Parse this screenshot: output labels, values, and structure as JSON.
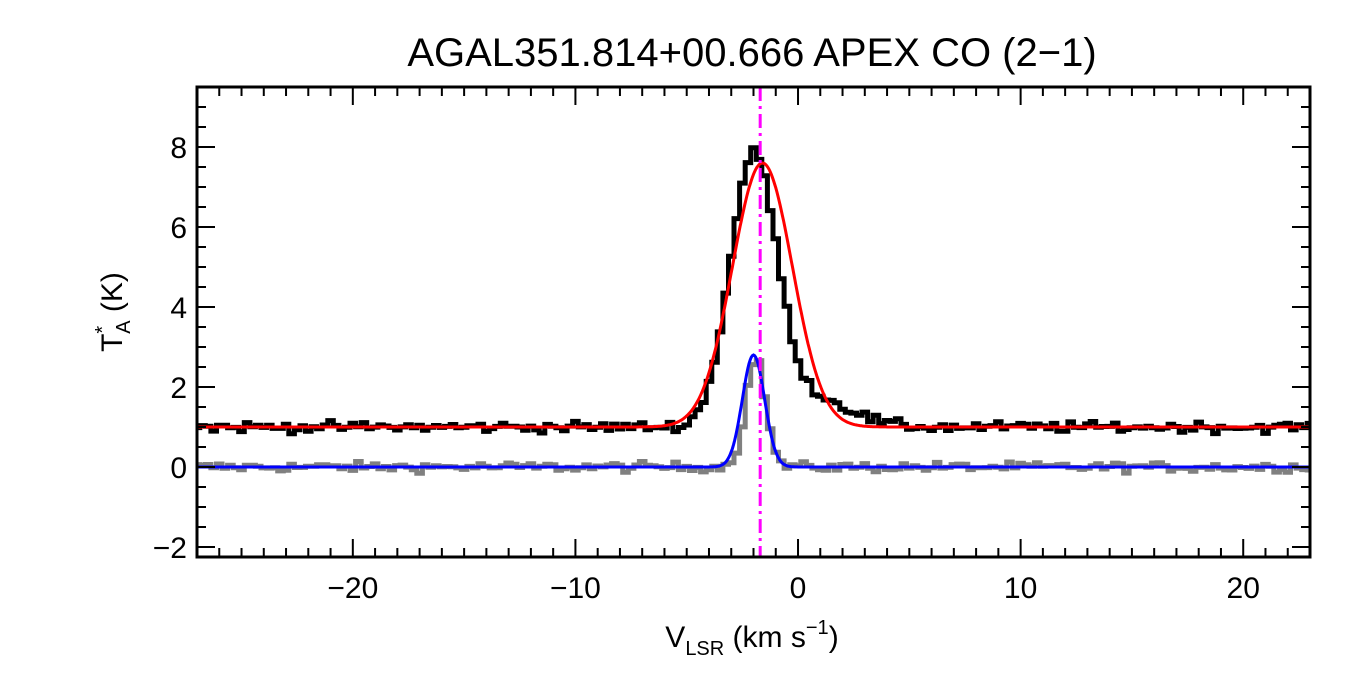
{
  "chart_data": {
    "type": "line",
    "title": "AGAL351.814+00.666  APEX CO (2−1)",
    "xlabel": {
      "main": "V",
      "sub": "LSR",
      "unit_open": " (km s",
      "unit_sup": "−1",
      "unit_close": ")"
    },
    "ylabel": {
      "main": "T",
      "sup": "*",
      "sub": "A",
      "unit": " (K)"
    },
    "xlim": [
      -27,
      23
    ],
    "ylim": [
      -2.25,
      9.5
    ],
    "xticks": [
      -20,
      -10,
      0,
      10,
      20
    ],
    "xtick_labels": [
      "−20",
      "−10",
      "0",
      "10",
      "20"
    ],
    "yticks": [
      -2,
      0,
      2,
      4,
      6,
      8
    ],
    "ytick_labels": [
      "−2",
      "0",
      "2",
      "4",
      "6",
      "8"
    ],
    "x_minor_step": 1,
    "y_minor_step": 0.5,
    "grid": false,
    "legend": "none",
    "reference_line": {
      "x": -1.7,
      "color": "#ff00ff",
      "style": "dash-dot"
    },
    "series": [
      {
        "color": "#808080",
        "style": "step",
        "baseline": 0.0,
        "noise": 0.12,
        "peak": {
          "amp": 2.7,
          "center": -1.9,
          "sigma": 0.45
        }
      },
      {
        "color": "#000000",
        "style": "step",
        "baseline": 1.0,
        "noise": 0.13,
        "peak": {
          "amp": 6.7,
          "center": -2.0,
          "sigma": 1.05,
          "wing_amp": 0.7,
          "wing_center": 0.8,
          "wing_sigma": 1.6
        }
      },
      {
        "color": "#ff0000",
        "style": "line",
        "function": "gaussian",
        "baseline": 1.0,
        "amp": 6.6,
        "center": -1.6,
        "sigma": 1.35
      },
      {
        "color": "#0000ff",
        "style": "line",
        "function": "gaussian",
        "baseline": 0.0,
        "amp": 2.8,
        "center": -2.0,
        "sigma": 0.5
      }
    ]
  }
}
